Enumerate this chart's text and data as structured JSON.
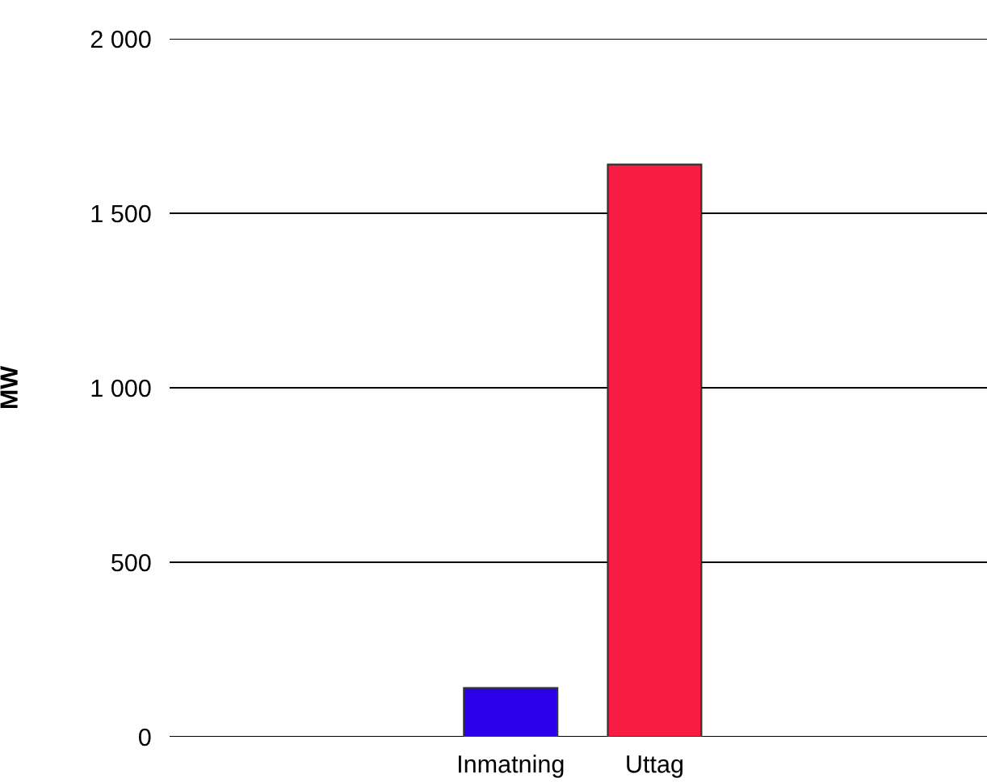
{
  "chart_data": {
    "type": "bar",
    "ylabel": "MW",
    "categories": [
      "Inmatning",
      "Uttag"
    ],
    "values": [
      140,
      1640
    ],
    "colors": [
      "#2c00e8",
      "#f91c42"
    ],
    "ylim": [
      0,
      2000
    ],
    "yticks": [
      {
        "value": 0,
        "label": "0"
      },
      {
        "value": 500,
        "label": "500"
      },
      {
        "value": 1000,
        "label": "1 000"
      },
      {
        "value": 1500,
        "label": "1 500"
      },
      {
        "value": 2000,
        "label": "2 000"
      }
    ],
    "grid": "y",
    "legend": false
  }
}
